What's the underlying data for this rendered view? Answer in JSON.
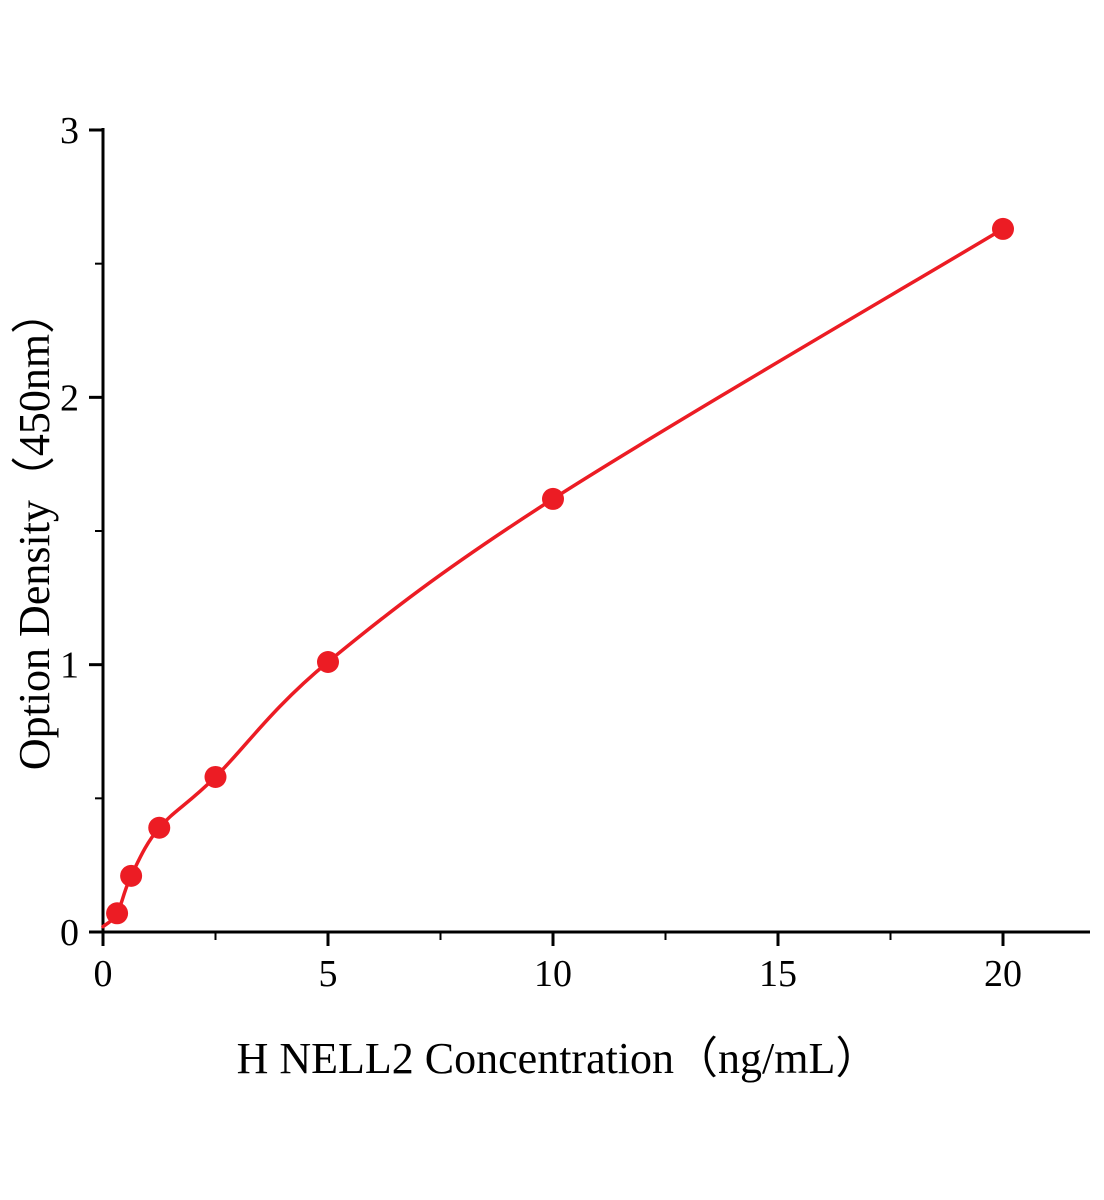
{
  "chart_data": {
    "type": "line",
    "title": "",
    "xlabel": "H NELL2 Concentration（ng/mL）",
    "ylabel": "Option Density（450nm）",
    "x": [
      0.313,
      0.625,
      1.25,
      2.5,
      5,
      10,
      20
    ],
    "y": [
      0.07,
      0.21,
      0.39,
      0.58,
      1.01,
      1.62,
      2.63
    ],
    "curve_start": {
      "x": 0,
      "y": 0.02
    },
    "xlim": [
      0,
      22
    ],
    "ylim": [
      0,
      3
    ],
    "x_ticks": [
      0,
      5,
      10,
      15,
      20
    ],
    "y_ticks": [
      0,
      1,
      2,
      3
    ],
    "x_minor_ticks": [
      2.5,
      7.5,
      12.5,
      17.5
    ],
    "y_minor_ticks": [
      0.5,
      1.5,
      2.5
    ],
    "grid": false,
    "legend": null,
    "line_color": "#ec1c24",
    "marker_color": "#ec1c24",
    "axis_color": "#000000",
    "marker_radius": 11,
    "line_width": 3.5
  }
}
